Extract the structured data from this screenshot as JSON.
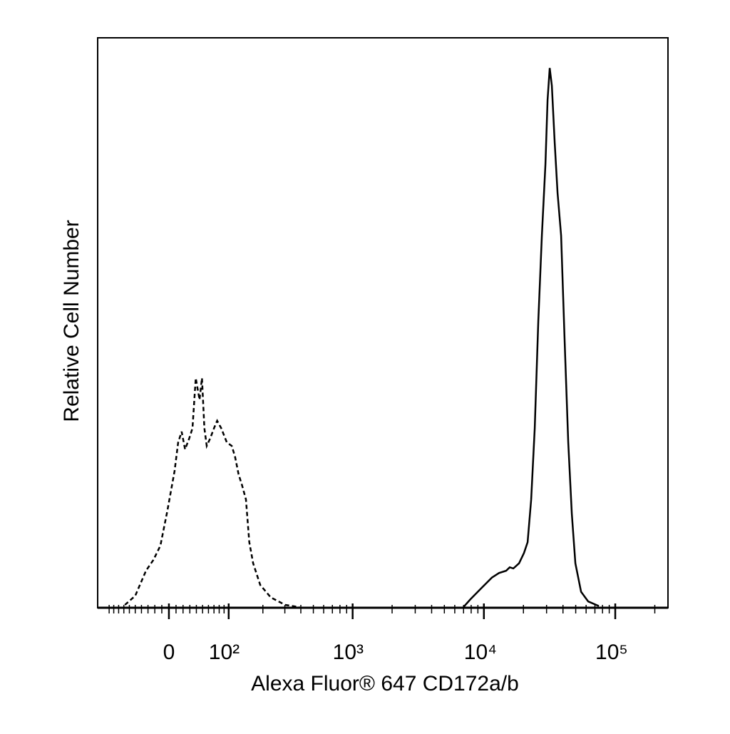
{
  "chart_data": {
    "type": "line",
    "x_label": "Alexa Fluor® 647 CD172a/b",
    "y_label": "Relative Cell Number",
    "xscale": "biexponential",
    "xlim": [
      -128,
      252000
    ],
    "ylim": [
      0,
      100
    ],
    "xticks": [
      0,
      {
        "value": 100,
        "label": "10²"
      },
      {
        "value": 1000,
        "label": "10³"
      },
      {
        "value": 10000,
        "label": "10⁴"
      },
      {
        "value": 100000,
        "label": "10⁵"
      }
    ],
    "xminorticks": [
      -100,
      -90,
      -80,
      -70,
      -60,
      -50,
      -40,
      -30,
      -20,
      -10,
      10,
      20,
      30,
      40,
      50,
      60,
      70,
      80,
      90,
      200,
      300,
      400,
      500,
      600,
      700,
      800,
      900,
      2000,
      3000,
      4000,
      5000,
      6000,
      7000,
      8000,
      9000,
      20000,
      30000,
      40000,
      50000,
      60000,
      70000,
      80000,
      90000,
      200000
    ],
    "series": [
      {
        "color": "#000000",
        "linestyle": "dashed",
        "x": [
          -68,
          -50,
          -33,
          -22,
          -12,
          -2,
          8,
          13,
          18,
          23,
          29,
          34,
          39,
          45,
          49,
          53,
          57,
          63,
          70,
          76,
          84,
          96,
          107,
          115,
          124,
          133,
          144,
          154,
          166,
          190,
          232,
          302,
          390
        ],
        "values": [
          0.5,
          2.1,
          6.5,
          8.4,
          10.9,
          17.1,
          24.0,
          29.0,
          30.9,
          27.8,
          29.7,
          31.5,
          40.3,
          36.5,
          40.3,
          31.5,
          28.4,
          29.7,
          31.5,
          32.8,
          31.5,
          29.0,
          28.4,
          26.5,
          23.4,
          21.5,
          19.0,
          11.5,
          7.8,
          4.0,
          1.8,
          0.5,
          0.1
        ]
      },
      {
        "color": "#000000",
        "linestyle": "solid",
        "x": [
          6980,
          7910,
          9540,
          11510,
          13040,
          14780,
          15730,
          16750,
          18510,
          20200,
          21510,
          22900,
          24370,
          25940,
          27620,
          29400,
          30530,
          31700,
          32910,
          34600,
          36370,
          38720,
          41200,
          43860,
          46690,
          49700,
          54930,
          62240,
          75060
        ],
        "values": [
          0.1,
          1.5,
          3.4,
          5.3,
          6.1,
          6.5,
          7.1,
          6.9,
          7.8,
          9.6,
          11.5,
          19.0,
          31.5,
          50.3,
          65.3,
          77.8,
          89.1,
          94.7,
          91.6,
          81.6,
          72.8,
          65.3,
          46.6,
          29.0,
          16.5,
          7.8,
          2.8,
          1.1,
          0.3
        ]
      }
    ]
  }
}
